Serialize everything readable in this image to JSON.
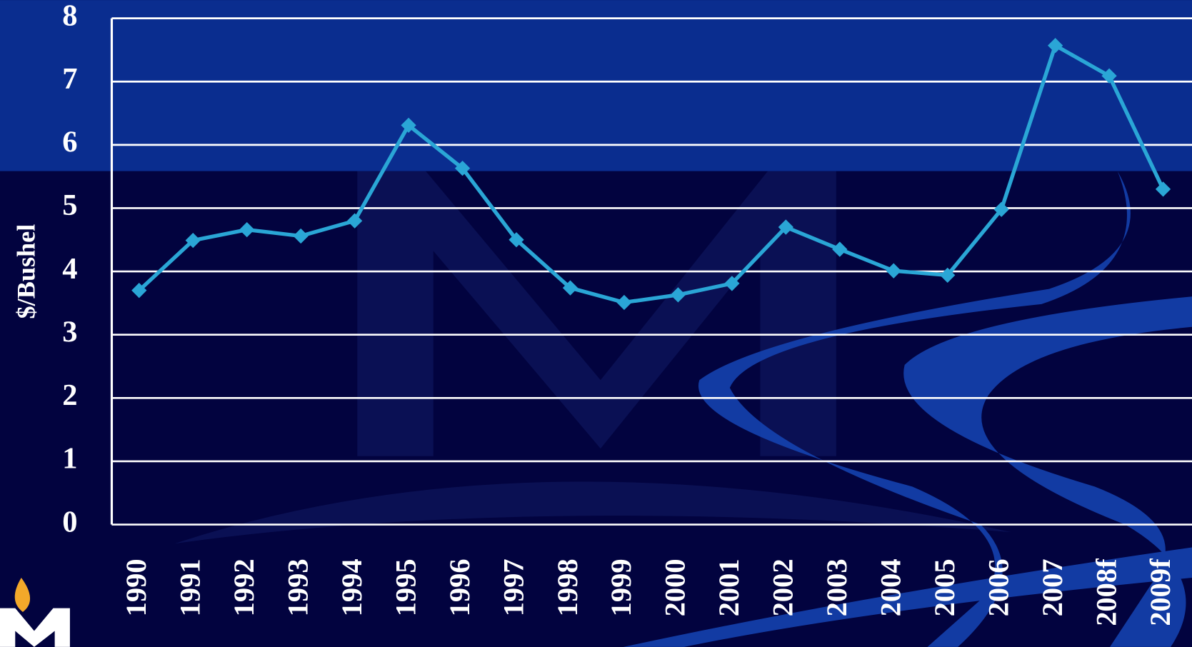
{
  "chart_data": {
    "type": "line",
    "y_label": "$/Bushel",
    "categories": [
      "1990",
      "1991",
      "1992",
      "1993",
      "1994",
      "1995",
      "1996",
      "1997",
      "1998",
      "1999",
      "2000",
      "2001",
      "2002",
      "2003",
      "2004",
      "2005",
      "2006",
      "2007",
      "2008f",
      "2009f"
    ],
    "values": [
      3.7,
      4.49,
      4.66,
      4.56,
      4.8,
      6.31,
      5.63,
      4.5,
      3.74,
      3.51,
      3.63,
      3.81,
      4.7,
      4.35,
      4.01,
      3.94,
      4.98,
      7.57,
      7.09,
      5.3
    ],
    "color": "#2aa6d6",
    "ylim": [
      0,
      8
    ],
    "yticks": [
      0,
      1,
      2,
      3,
      4,
      5,
      6,
      7,
      8
    ],
    "grid": true
  }
}
